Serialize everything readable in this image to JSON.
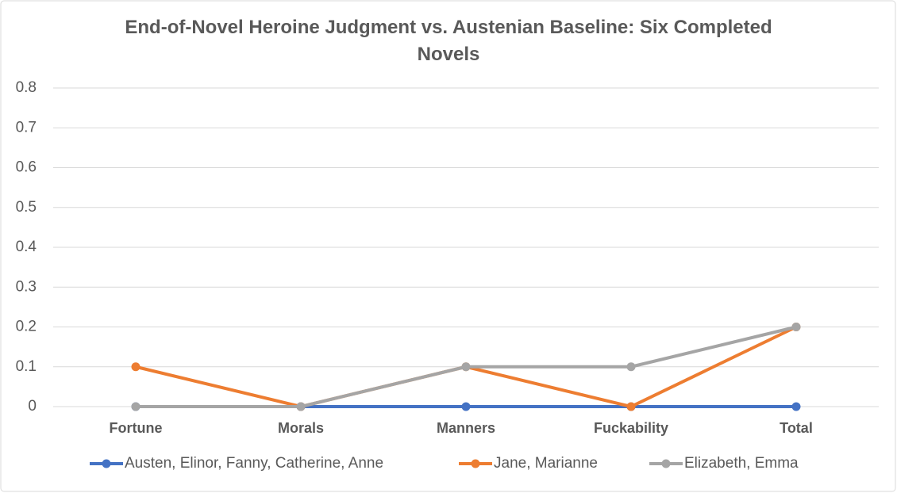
{
  "chart_data": {
    "type": "line",
    "title": "End-of-Novel Heroine Judgment vs. Austenian Baseline: Six Completed Novels",
    "categories": [
      "Fortune",
      "Morals",
      "Manners",
      "Fuckability",
      "Total"
    ],
    "series": [
      {
        "name": "Austen, Elinor, Fanny, Catherine, Anne",
        "color": "#4472c4",
        "values": [
          0,
          0,
          0,
          0,
          0
        ]
      },
      {
        "name": "Jane, Marianne",
        "color": "#ed7d31",
        "values": [
          0.1,
          0,
          0.1,
          0,
          0.2
        ]
      },
      {
        "name": "Elizabeth, Emma",
        "color": "#a5a5a5",
        "values": [
          0,
          0,
          0.1,
          0.1,
          0.2
        ]
      }
    ],
    "ylim": [
      0,
      0.8
    ],
    "yticks": [
      0,
      0.1,
      0.2,
      0.3,
      0.4,
      0.5,
      0.6,
      0.7,
      0.8
    ],
    "grid": true,
    "legend": "bottom"
  }
}
